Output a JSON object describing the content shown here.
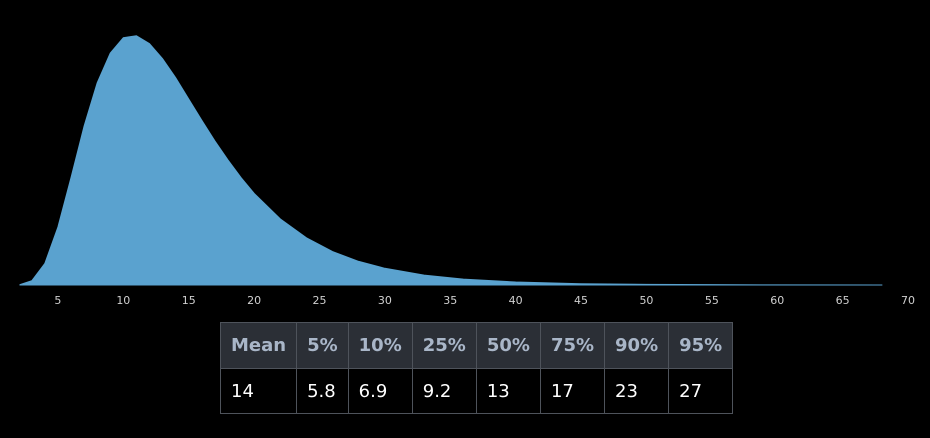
{
  "chart_data": {
    "type": "area",
    "color": "#5aa2cf",
    "x": [
      2.1,
      3,
      4,
      5,
      6,
      7,
      8,
      9,
      10,
      11,
      12,
      13,
      14,
      15,
      16,
      17,
      18,
      19,
      20,
      22,
      24,
      26,
      28,
      30,
      33,
      36,
      40,
      45,
      50,
      55,
      60,
      68
    ],
    "values": [
      0.0001,
      0.0013,
      0.0066,
      0.0177,
      0.0328,
      0.0485,
      0.0617,
      0.0708,
      0.0755,
      0.0761,
      0.0737,
      0.0691,
      0.0633,
      0.0568,
      0.0503,
      0.044,
      0.0382,
      0.0328,
      0.028,
      0.0202,
      0.0144,
      0.0102,
      0.0072,
      0.0051,
      0.003,
      0.0018,
      0.0009,
      0.0004,
      0.0002,
      0.0001,
      4e-05,
      1e-05
    ],
    "xlim": [
      2.1,
      70
    ],
    "ylim": [
      0,
      0.08
    ],
    "xticks": [
      5,
      10,
      15,
      20,
      25,
      30,
      35,
      40,
      45,
      50,
      55,
      60,
      65,
      70
    ]
  },
  "table": {
    "headers": [
      "Mean",
      "5%",
      "10%",
      "25%",
      "50%",
      "75%",
      "90%",
      "95%"
    ],
    "rows": [
      [
        14,
        5.8,
        6.9,
        9.2,
        13,
        17,
        23,
        27
      ]
    ]
  }
}
